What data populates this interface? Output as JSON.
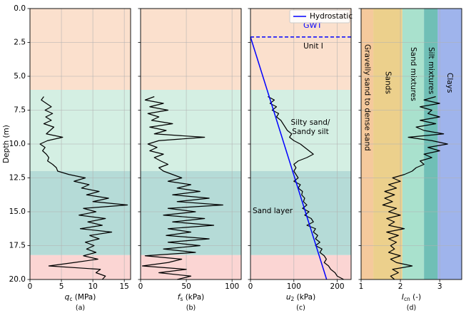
{
  "y_label": "Depth (m)",
  "chart_data": [
    {
      "type": "line",
      "caption": "(a)",
      "xlabel": {
        "symbol": "q",
        "sub": "c",
        "unit": " (MPa)"
      },
      "xlim": [
        0,
        16
      ],
      "xticks": [
        0,
        5,
        10,
        15
      ],
      "ylim": [
        20,
        0
      ],
      "yticks": [
        {
          "value": 0,
          "label": "0.0"
        },
        2.5,
        {
          "value": 5,
          "label": "5.0"
        },
        7.5,
        {
          "value": 10,
          "label": "10.0"
        },
        12.5,
        {
          "value": 15,
          "label": "15.0"
        },
        17.5,
        {
          "value": 20,
          "label": "20.0"
        }
      ],
      "grid": true,
      "layers": [
        {
          "from": 0,
          "to": 6,
          "color": "#fbe0cd"
        },
        {
          "from": 6,
          "to": 12,
          "color": "#d4efe3"
        },
        {
          "from": 12,
          "to": 18.2,
          "color": "#b5dbd7"
        },
        {
          "from": 18.2,
          "to": 20,
          "color": "#fbd5d3"
        }
      ],
      "depth": [
        6.5,
        6.75,
        7,
        7.25,
        7.5,
        7.75,
        8,
        8.25,
        8.5,
        8.75,
        9,
        9.25,
        9.5,
        9.75,
        10,
        10.25,
        10.5,
        10.75,
        11,
        11.25,
        11.5,
        11.75,
        12,
        12.25,
        12.5,
        12.75,
        13,
        13.25,
        13.5,
        13.75,
        14,
        14.25,
        14.5,
        14.75,
        15,
        15.25,
        15.5,
        15.75,
        16,
        16.25,
        16.5,
        16.75,
        17,
        17.25,
        17.5,
        17.75,
        18,
        18.25,
        18.5,
        18.75,
        19,
        19.25,
        19.5,
        19.75,
        20
      ],
      "series": [
        {
          "color": "#000000",
          "values": [
            2.2,
            1.8,
            2.6,
            3.4,
            2.4,
            3.6,
            2.5,
            3.4,
            2.2,
            3.8,
            3.2,
            2.6,
            5.2,
            2.8,
            1.6,
            2.4,
            2.0,
            2.6,
            3.0,
            2.8,
            3.6,
            4.2,
            4.4,
            6.2,
            8.8,
            7.0,
            9.4,
            8.2,
            11.0,
            9.0,
            12.5,
            10.0,
            15.5,
            8.5,
            10.5,
            7.8,
            12.0,
            9.2,
            11.5,
            8.0,
            13.0,
            9.5,
            11.0,
            8.8,
            10.2,
            9.0,
            10.5,
            8.5,
            10.8,
            7.0,
            3.0,
            11.2,
            10.5,
            12.0,
            11.5
          ]
        }
      ]
    },
    {
      "type": "line",
      "caption": "(b)",
      "xlabel": {
        "symbol": "f",
        "sub": "s",
        "unit": " (kPa)"
      },
      "xlim": [
        0,
        110
      ],
      "xticks": [
        0,
        50,
        100
      ],
      "grid": true,
      "series": [
        {
          "color": "#000000",
          "values": [
            15,
            5,
            25,
            10,
            30,
            8,
            20,
            12,
            35,
            10,
            28,
            15,
            70,
            20,
            8,
            18,
            10,
            25,
            15,
            22,
            30,
            20,
            25,
            35,
            45,
            30,
            55,
            40,
            65,
            35,
            75,
            40,
            90,
            30,
            60,
            25,
            70,
            35,
            80,
            30,
            55,
            28,
            75,
            30,
            65,
            25,
            60,
            5,
            45,
            30,
            2,
            50,
            20,
            55,
            40
          ]
        }
      ]
    },
    {
      "type": "line",
      "caption": "(c)",
      "xlabel": {
        "symbol": "u",
        "sub": "2",
        "unit": " (kPa)"
      },
      "xlim": [
        0,
        232
      ],
      "xticks": [
        0,
        100,
        200
      ],
      "grid": true,
      "legend": "upper right",
      "gwt": {
        "label": "GWT",
        "depth": 2.1,
        "color": "#0000ff"
      },
      "annotations": [
        {
          "lines": [
            "Unit I"
          ]
        },
        {
          "lines": [
            "Silty sand/",
            "Sandy silt"
          ]
        },
        {
          "lines": [
            "Sand layer"
          ]
        }
      ],
      "series": [
        {
          "color": "#000000",
          "values": [
            40,
            55,
            45,
            60,
            50,
            65,
            60,
            70,
            75,
            80,
            85,
            95,
            90,
            100,
            115,
            125,
            135,
            145,
            130,
            110,
            100,
            105,
            100,
            105,
            110,
            100,
            115,
            110,
            120,
            118,
            125,
            122,
            130,
            120,
            135,
            125,
            140,
            145,
            130,
            150,
            145,
            155,
            150,
            160,
            150,
            165,
            160,
            170,
            175,
            170,
            180,
            185,
            195,
            200,
            215
          ]
        },
        {
          "name": "Hydrostatic",
          "color": "#0000ff",
          "values": [
            0,
            175.6
          ],
          "depth": [
            2.1,
            20
          ]
        }
      ]
    },
    {
      "type": "line",
      "caption": "(d)",
      "xlabel": {
        "symbol": "I",
        "sub": "cn",
        "unit": " (-)"
      },
      "xlim": [
        1,
        3.56
      ],
      "xticks": [
        1,
        2,
        3
      ],
      "grid": true,
      "zones": [
        {
          "name": "Gravelly sand to dense sand",
          "from": 1,
          "to": 1.31,
          "color": "#f5c99c"
        },
        {
          "name": "Sands",
          "from": 1.31,
          "to": 2.05,
          "color": "#ecd08c"
        },
        {
          "name": "Sand mixtures",
          "from": 2.05,
          "to": 2.6,
          "color": "#a9e1cd"
        },
        {
          "name": "Silt mixtures",
          "from": 2.6,
          "to": 2.95,
          "color": "#70bfb6"
        },
        {
          "name": "Clays",
          "from": 2.95,
          "to": 3.56,
          "color": "#9fb4ec"
        }
      ],
      "series": [
        {
          "color": "#000000",
          "values": [
            2.9,
            2.6,
            3.0,
            2.5,
            2.8,
            2.7,
            3.0,
            2.5,
            2.9,
            2.4,
            2.6,
            3.1,
            2.2,
            2.8,
            3.2,
            2.7,
            3.0,
            2.6,
            2.8,
            2.5,
            2.6,
            2.4,
            2.3,
            2.1,
            1.8,
            2.0,
            1.7,
            1.9,
            1.6,
            1.85,
            1.6,
            1.8,
            1.55,
            1.9,
            1.7,
            2.0,
            1.65,
            1.85,
            1.7,
            2.1,
            1.65,
            1.95,
            1.7,
            1.9,
            1.75,
            1.85,
            1.7,
            2.0,
            1.75,
            1.9,
            2.3,
            1.8,
            1.95,
            1.75,
            1.85
          ]
        }
      ]
    }
  ]
}
